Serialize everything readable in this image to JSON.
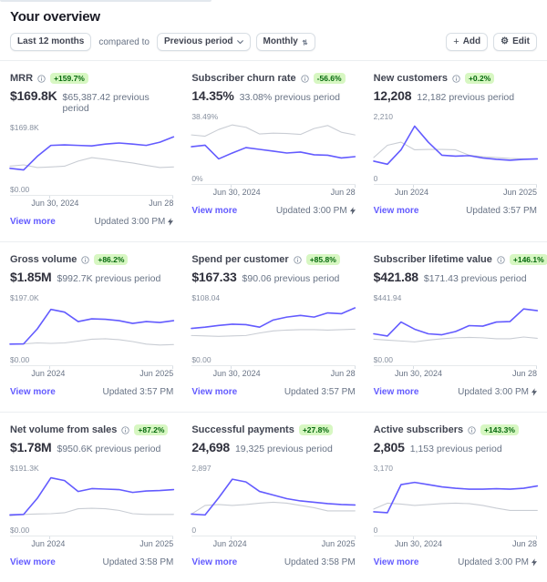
{
  "page": {
    "title": "Your overview"
  },
  "toolbar": {
    "date_range": "Last 12 months",
    "compared_to_label": "compared to",
    "comparison": "Previous period",
    "granularity": "Monthly",
    "add_label": "Add",
    "edit_label": "Edit"
  },
  "icons": {
    "add": "plus-icon",
    "edit": "gear-icon",
    "comparison": "chevron-down-icon",
    "granularity": "updown-arrows-icon",
    "metric_info": "info-icon",
    "realtime": "bolt-icon"
  },
  "colors": {
    "accent": "#635bff",
    "current_line": "#635bff",
    "previous_line": "#c9cdd4",
    "badge_bg": "#d7f7c2",
    "badge_text": "#05690d",
    "muted_text": "#687385",
    "divider": "#ebeef1"
  },
  "cards": [
    {
      "title": "MRR",
      "has_info_icon": true,
      "badge": "+159.7%",
      "value": "$169.8K",
      "previous": "$65,387.42 previous period",
      "y_max_label": "$169.8K",
      "y_min_label": "$0.00",
      "x_start_label": "Jun 30, 2024",
      "x_end_label": "Jun 28",
      "view_more": "View more",
      "updated": "Updated 3:00 PM",
      "realtime": true,
      "chart": {
        "type": "line",
        "y_max": 169.8,
        "series": [
          {
            "name": "previous",
            "color": "#c9cdd4",
            "values": [
              56,
              61,
              51,
              53,
              56,
              75,
              88,
              82,
              75,
              68,
              59,
              51,
              53
            ]
          },
          {
            "name": "current",
            "color": "#635bff",
            "values": [
              48,
              42,
              93,
              134,
              136,
              134,
              132,
              139,
              143,
              139,
              134,
              146,
              166
            ]
          }
        ]
      }
    },
    {
      "title": "Subscriber churn rate",
      "has_info_icon": true,
      "badge": "-56.6%",
      "value": "14.35%",
      "previous": "33.08% previous period",
      "y_max_label": "38.49%",
      "y_min_label": "0%",
      "x_start_label": "Jun 30, 2024",
      "x_end_label": "Jun 28",
      "view_more": "View more",
      "updated": "Updated 3:00 PM",
      "realtime": true,
      "chart": {
        "type": "line",
        "y_max": 38.49,
        "series": [
          {
            "name": "previous",
            "color": "#c9cdd4",
            "values": [
              30.0,
              28.9,
              34.6,
              38.5,
              36.5,
              30.8,
              31.5,
              31.2,
              30.4,
              35.4,
              38.0,
              32.3,
              30.0
            ]
          },
          {
            "name": "current",
            "color": "#635bff",
            "values": [
              20.0,
              21.2,
              9.6,
              14.6,
              19.2,
              17.7,
              16.2,
              14.6,
              15.4,
              13.1,
              12.7,
              10.4,
              11.5
            ]
          }
        ]
      }
    },
    {
      "title": "New customers",
      "has_info_icon": true,
      "badge": "+0.2%",
      "value": "12,208",
      "previous": "12,182 previous period",
      "y_max_label": "2,210",
      "y_min_label": "0",
      "x_start_label": "Jun 2024",
      "x_end_label": "Jun 2025",
      "view_more": "View more",
      "updated": "Updated 3:57 PM",
      "realtime": false,
      "chart": {
        "type": "line",
        "y_max": 2210,
        "series": [
          {
            "name": "previous",
            "color": "#c9cdd4",
            "values": [
              620,
              1215,
              1370,
              995,
              1015,
              1015,
              995,
              730,
              660,
              620,
              575,
              550,
              550
            ]
          },
          {
            "name": "current",
            "color": "#635bff",
            "values": [
              440,
              290,
              995,
              2150,
              1370,
              730,
              685,
              710,
              595,
              530,
              485,
              530,
              550
            ]
          }
        ]
      }
    },
    {
      "title": "Gross volume",
      "has_info_icon": true,
      "badge": "+86.2%",
      "value": "$1.85M",
      "previous": "$992.7K previous period",
      "y_max_label": "$197.0K",
      "y_min_label": "$0.00",
      "x_start_label": "Jun 2024",
      "x_end_label": "Jun 2025",
      "view_more": "View more",
      "updated": "Updated 3:57 PM",
      "realtime": false,
      "chart": {
        "type": "line",
        "y_max": 197,
        "series": [
          {
            "name": "previous",
            "color": "#c9cdd4",
            "values": [
              32,
              33,
              37,
              35,
              37,
              45,
              53,
              55,
              51,
              43,
              32,
              28,
              30
            ]
          },
          {
            "name": "current",
            "color": "#635bff",
            "values": [
              32,
              33,
              98,
              183,
              171,
              130,
              142,
              140,
              134,
              122,
              130,
              126,
              134
            ]
          }
        ]
      }
    },
    {
      "title": "Spend per customer",
      "has_info_icon": true,
      "badge": "+85.8%",
      "value": "$167.33",
      "previous": "$90.06 previous period",
      "y_max_label": "$108.04",
      "y_min_label": "$0.00",
      "x_start_label": "Jun 30, 2024",
      "x_end_label": "Jun 28",
      "view_more": "View more",
      "updated": "Updated 3:57 PM",
      "realtime": false,
      "chart": {
        "type": "line",
        "y_max": 108.04,
        "series": [
          {
            "name": "previous",
            "color": "#c9cdd4",
            "values": [
              38,
              37,
              36,
              37,
              38,
              44,
              49,
              51,
              52,
              52,
              51,
              52,
              53
            ]
          },
          {
            "name": "current",
            "color": "#635bff",
            "values": [
              55,
              58,
              62,
              65,
              64,
              58,
              75,
              82,
              86,
              82,
              92,
              90,
              104
            ]
          }
        ]
      }
    },
    {
      "title": "Subscriber lifetime value",
      "has_info_icon": true,
      "badge": "+146.1%",
      "value": "$421.88",
      "previous": "$171.43 previous period",
      "y_max_label": "$441.94",
      "y_min_label": "$0.00",
      "x_start_label": "Jun 30, 2024",
      "x_end_label": "Jun 28",
      "view_more": "View more",
      "updated": "Updated 3:00 PM",
      "realtime": true,
      "chart": {
        "type": "line",
        "y_max": 441.94,
        "series": [
          {
            "name": "previous",
            "color": "#c9cdd4",
            "values": [
              119,
              110,
              102,
              93,
              110,
              124,
              133,
              137,
              133,
              124,
              124,
              141,
              128
            ]
          },
          {
            "name": "current",
            "color": "#635bff",
            "values": [
              172,
              150,
              287,
              217,
              172,
              163,
              194,
              252,
              247,
              287,
              292,
              415,
              398
            ]
          }
        ]
      }
    },
    {
      "title": "Net volume from sales",
      "has_info_icon": true,
      "badge": "+87.2%",
      "value": "$1.78M",
      "previous": "$950.6K previous period",
      "y_max_label": "$191.3K",
      "y_min_label": "$0.00",
      "x_start_label": "Jun 2024",
      "x_end_label": "Jun 2025",
      "view_more": "View more",
      "updated": "Updated 3:58 PM",
      "realtime": false,
      "chart": {
        "type": "line",
        "y_max": 191.3,
        "series": [
          {
            "name": "previous",
            "color": "#c9cdd4",
            "values": [
              25,
              31,
              33,
              34,
              38,
              55,
              57,
              55,
              48,
              34,
              31,
              31,
              31
            ]
          },
          {
            "name": "current",
            "color": "#635bff",
            "values": [
              29,
              31,
              99,
              186,
              174,
              128,
              140,
              138,
              136,
              124,
              130,
              132,
              136
            ]
          }
        ]
      }
    },
    {
      "title": "Successful payments",
      "has_info_icon": false,
      "badge": "+27.8%",
      "value": "24,698",
      "previous": "19,325 previous period",
      "y_max_label": "2,897",
      "y_min_label": "0",
      "x_start_label": "Jun 2024",
      "x_end_label": "Jun 2025",
      "view_more": "View more",
      "updated": "Updated 3:58 PM",
      "realtime": false,
      "chart": {
        "type": "line",
        "y_max": 2897,
        "series": [
          {
            "name": "previous",
            "color": "#c9cdd4",
            "values": [
              492,
              1043,
              1101,
              1043,
              1101,
              1188,
              1246,
              1188,
              1043,
              898,
              695,
              695,
              695
            ]
          },
          {
            "name": "current",
            "color": "#635bff",
            "values": [
              492,
              435,
              1535,
              2723,
              2550,
              1941,
              1709,
              1478,
              1333,
              1246,
              1159,
              1101,
              1072
            ]
          }
        ]
      }
    },
    {
      "title": "Active subscribers",
      "has_info_icon": true,
      "badge": "+143.3%",
      "value": "2,805",
      "previous": "1,153 previous period",
      "y_max_label": "3,170",
      "y_min_label": "0",
      "x_start_label": "Jun 30, 2024",
      "x_end_label": "Jun 28",
      "view_more": "View more",
      "updated": "Updated 3:00 PM",
      "realtime": true,
      "chart": {
        "type": "line",
        "y_max": 3170,
        "series": [
          {
            "name": "previous",
            "color": "#c9cdd4",
            "values": [
              888,
              1300,
              1236,
              1141,
              1204,
              1268,
              1300,
              1268,
              1141,
              951,
              793,
              793,
              793
            ]
          },
          {
            "name": "current",
            "color": "#635bff",
            "values": [
              697,
              634,
              2600,
              2758,
              2600,
              2441,
              2346,
              2282,
              2282,
              2314,
              2282,
              2346,
              2504
            ]
          }
        ]
      }
    }
  ]
}
